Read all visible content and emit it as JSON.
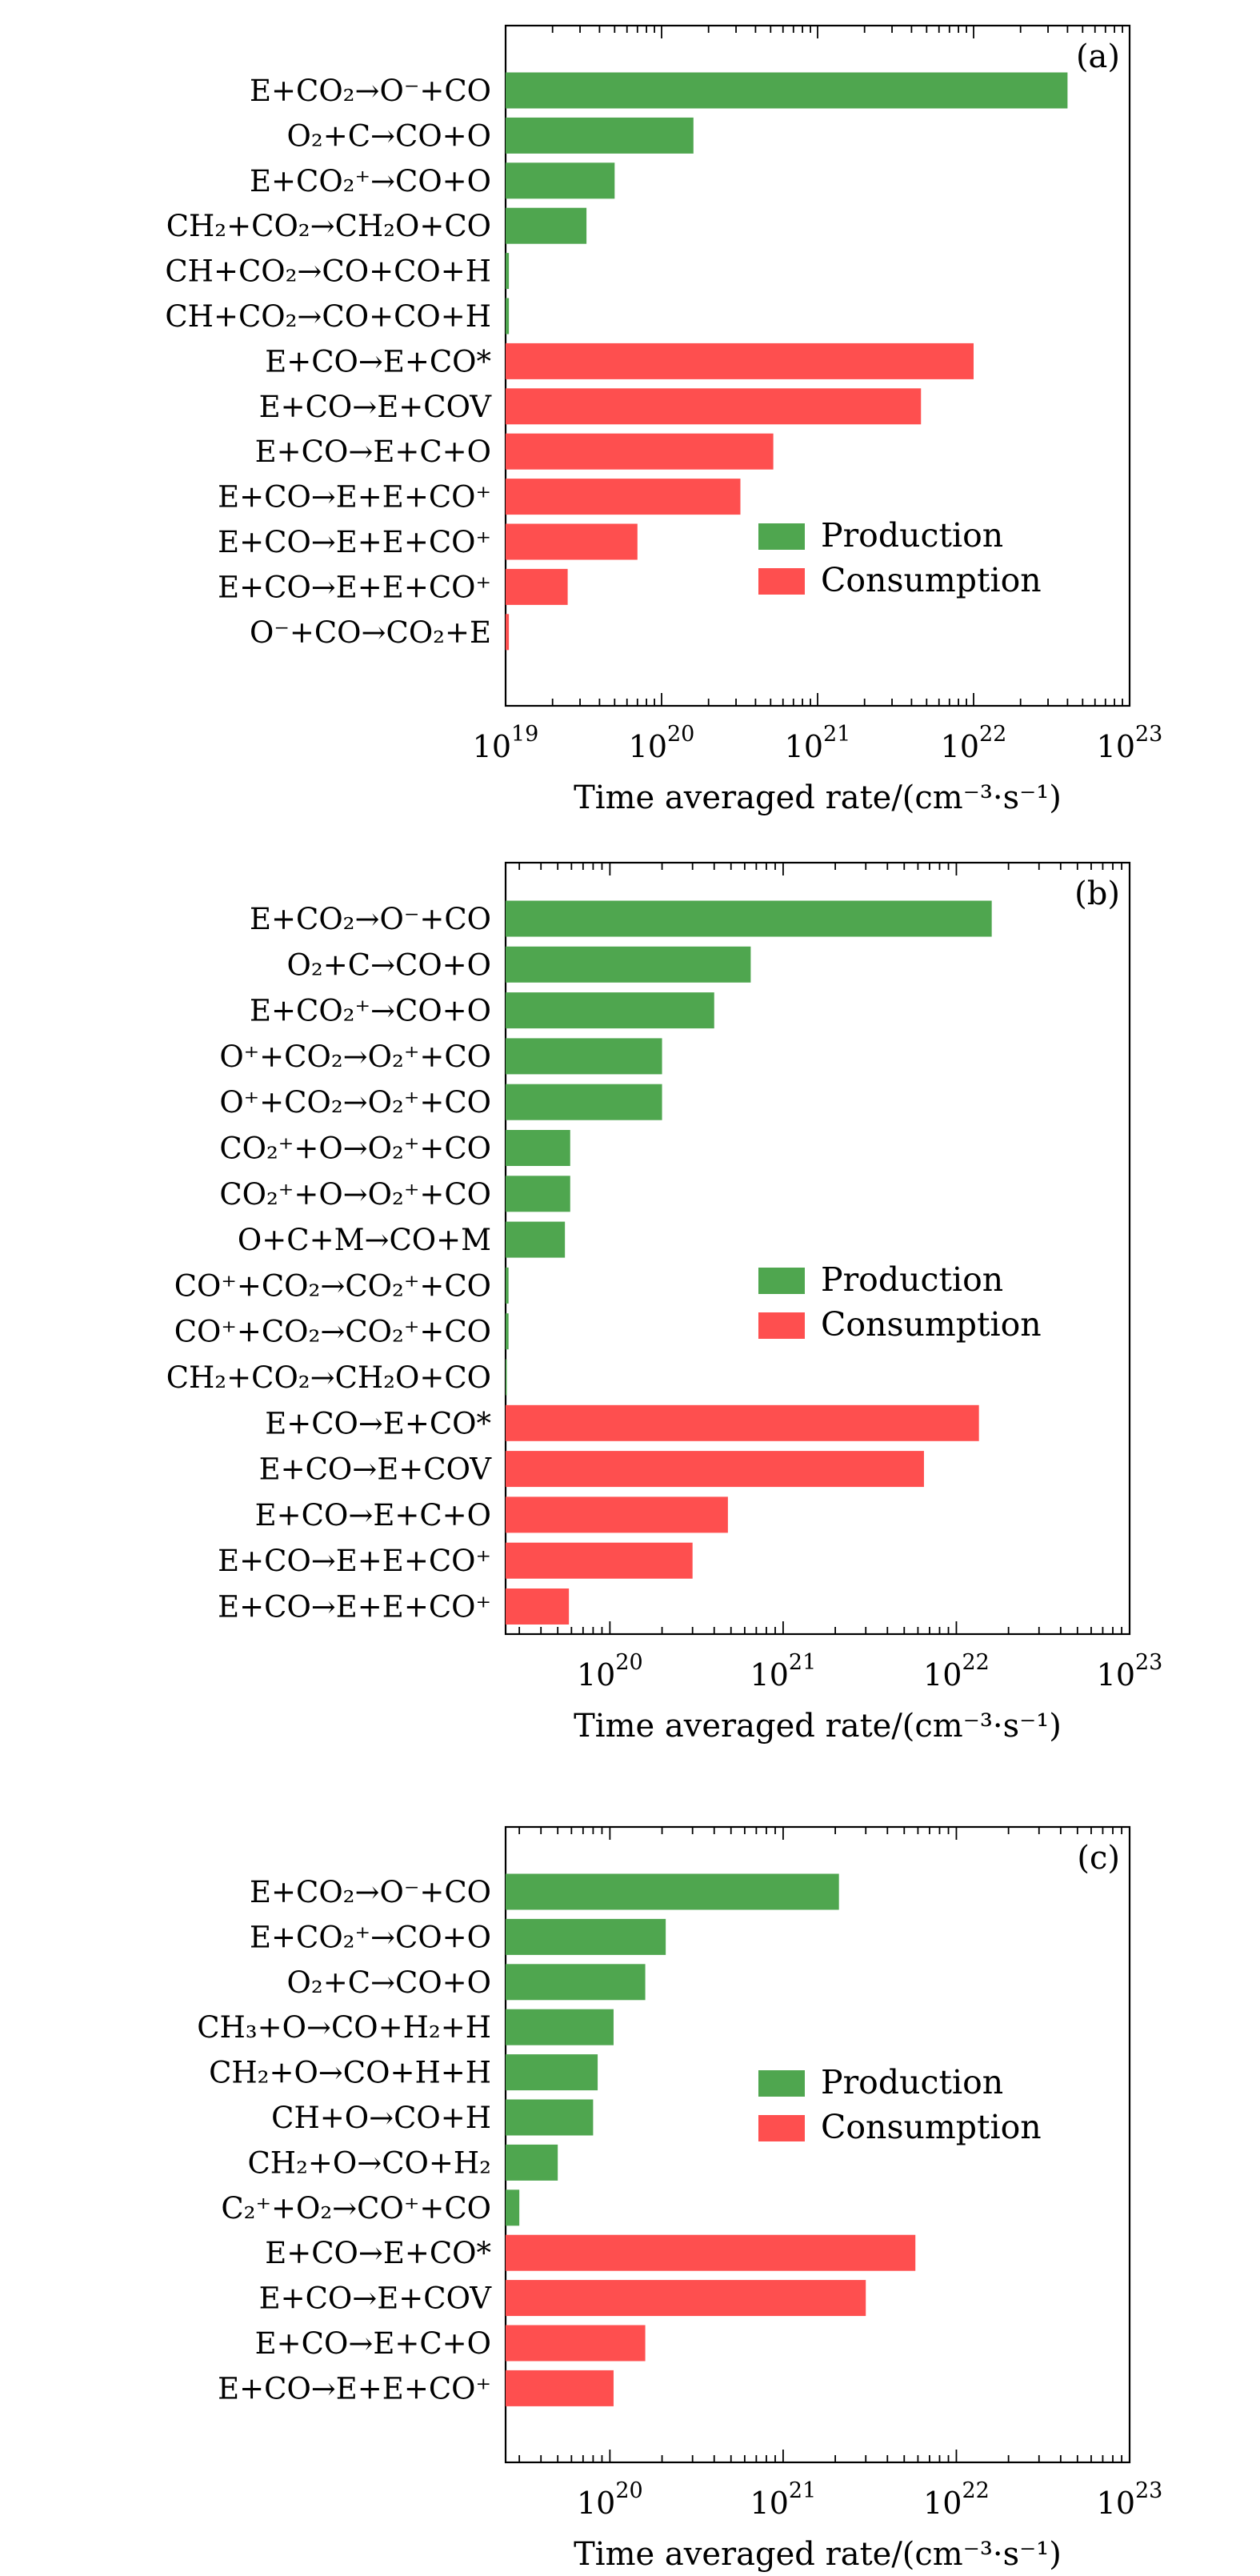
{
  "x_axis_label": "Time averaged rate/(cm⁻³·s⁻¹)",
  "legend": {
    "production": "Production",
    "consumption": "Consumption"
  },
  "colors": {
    "production": "#4fa64f",
    "consumption": "#fe4f4f",
    "frame": "#000000"
  },
  "chart_data": [
    {
      "panel": "(a)",
      "type": "bar",
      "orientation": "horizontal",
      "x_scale": "log",
      "xlim": [
        1e+19,
        1e+23
      ],
      "x_ticks": [
        19,
        20,
        21,
        22,
        23
      ],
      "legend_placement": "right",
      "bars": [
        {
          "label": "E+CO₂→O⁻+CO",
          "value": 4e+22,
          "kind": "production"
        },
        {
          "label": "O₂+C→CO+O",
          "value": 1.6e+20,
          "kind": "production"
        },
        {
          "label": "E+CO₂⁺→CO+O",
          "value": 5e+19,
          "kind": "production"
        },
        {
          "label": "CH₂+CO₂→CH₂O+CO",
          "value": 3.3e+19,
          "kind": "production"
        },
        {
          "label": "CH+CO₂→CO+CO+H",
          "value": 1.05e+19,
          "kind": "production"
        },
        {
          "label": "CH+CO₂→CO+CO+H",
          "value": 1.05e+19,
          "kind": "production"
        },
        {
          "label": "E+CO→E+CO*",
          "value": 1e+22,
          "kind": "consumption"
        },
        {
          "label": "E+CO→E+COV",
          "value": 4.6e+21,
          "kind": "consumption"
        },
        {
          "label": "E+CO→E+C+O",
          "value": 5.2e+20,
          "kind": "consumption"
        },
        {
          "label": "E+CO→E+E+CO⁺",
          "value": 3.2e+20,
          "kind": "consumption"
        },
        {
          "label": "E+CO→E+E+CO⁺",
          "value": 7e+19,
          "kind": "consumption"
        },
        {
          "label": "E+CO→E+E+CO⁺",
          "value": 2.5e+19,
          "kind": "consumption"
        },
        {
          "label": "O⁻+CO→CO₂+E",
          "value": 1.05e+19,
          "kind": "consumption"
        }
      ]
    },
    {
      "panel": "(b)",
      "type": "bar",
      "orientation": "horizontal",
      "x_scale": "log",
      "xlim": [
        2.5e+19,
        1e+23
      ],
      "x_ticks": [
        20,
        21,
        22,
        23
      ],
      "legend_placement": "right",
      "bars": [
        {
          "label": "E+CO₂→O⁻+CO",
          "value": 1.6e+22,
          "kind": "production"
        },
        {
          "label": "O₂+C→CO+O",
          "value": 6.5e+20,
          "kind": "production"
        },
        {
          "label": "E+CO₂⁺→CO+O",
          "value": 4e+20,
          "kind": "production"
        },
        {
          "label": "O⁺+CO₂→O₂⁺+CO",
          "value": 2e+20,
          "kind": "production"
        },
        {
          "label": "O⁺+CO₂→O₂⁺+CO",
          "value": 2e+20,
          "kind": "production"
        },
        {
          "label": "CO₂⁺+O→O₂⁺+CO",
          "value": 5.9e+19,
          "kind": "production"
        },
        {
          "label": "CO₂⁺+O→O₂⁺+CO",
          "value": 5.9e+19,
          "kind": "production"
        },
        {
          "label": "O+C+M→CO+M",
          "value": 5.5e+19,
          "kind": "production"
        },
        {
          "label": "CO⁺+CO₂→CO₂⁺+CO",
          "value": 2.6e+19,
          "kind": "production"
        },
        {
          "label": "CO⁺+CO₂→CO₂⁺+CO",
          "value": 2.6e+19,
          "kind": "production"
        },
        {
          "label": "CH₂+CO₂→CH₂O+CO",
          "value": 2.52e+19,
          "kind": "production"
        },
        {
          "label": "E+CO→E+CO*",
          "value": 1.35e+22,
          "kind": "consumption"
        },
        {
          "label": "E+CO→E+COV",
          "value": 6.5e+21,
          "kind": "consumption"
        },
        {
          "label": "E+CO→E+C+O",
          "value": 4.8e+20,
          "kind": "consumption"
        },
        {
          "label": "E+CO→E+E+CO⁺",
          "value": 3e+20,
          "kind": "consumption"
        },
        {
          "label": "E+CO→E+E+CO⁺",
          "value": 5.8e+19,
          "kind": "consumption"
        }
      ]
    },
    {
      "panel": "(c)",
      "type": "bar",
      "orientation": "horizontal",
      "x_scale": "log",
      "xlim": [
        2.5e+19,
        1e+23
      ],
      "x_ticks": [
        20,
        21,
        22,
        23
      ],
      "legend_placement": "right",
      "bars": [
        {
          "label": "E+CO₂→O⁻+CO",
          "value": 2.1e+21,
          "kind": "production"
        },
        {
          "label": "E+CO₂⁺→CO+O",
          "value": 2.1e+20,
          "kind": "production"
        },
        {
          "label": "O₂+C→CO+O",
          "value": 1.6e+20,
          "kind": "production"
        },
        {
          "label": "CH₃+O→CO+H₂+H",
          "value": 1.05e+20,
          "kind": "production"
        },
        {
          "label": "CH₂+O→CO+H+H",
          "value": 8.5e+19,
          "kind": "production"
        },
        {
          "label": "CH+O→CO+H",
          "value": 8e+19,
          "kind": "production"
        },
        {
          "label": "CH₂+O→CO+H₂",
          "value": 5e+19,
          "kind": "production"
        },
        {
          "label": "C₂⁺+O₂→CO⁺+CO",
          "value": 3e+19,
          "kind": "production"
        },
        {
          "label": "E+CO→E+CO*",
          "value": 5.8e+21,
          "kind": "consumption"
        },
        {
          "label": "E+CO→E+COV",
          "value": 3e+21,
          "kind": "consumption"
        },
        {
          "label": "E+CO→E+C+O",
          "value": 1.6e+20,
          "kind": "consumption"
        },
        {
          "label": "E+CO→E+E+CO⁺",
          "value": 1.05e+20,
          "kind": "consumption"
        }
      ]
    }
  ]
}
